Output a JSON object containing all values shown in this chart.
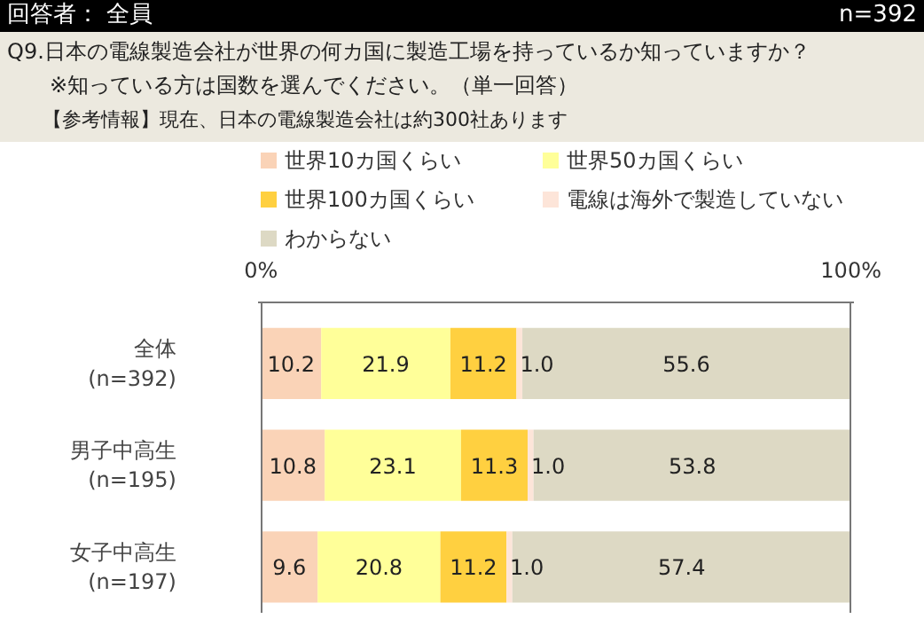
{
  "chart_data": {
    "type": "bar",
    "orientation": "horizontal",
    "stacked": true,
    "title": "回答者： 全員",
    "subtitle": "Q9.日本の電線製造会社が世界の何カ国に製造工場を持っているか知っていますか？",
    "annotations": [
      "n=392",
      "※知っている方は国数を選んでください。（単一回答）",
      "【参考情報】現在、日本の電線製造会社は約300社あります"
    ],
    "categories": [
      "全体\n(n=392)",
      "男子中高生\n(n=195)",
      "女子中高生\n(n=197)"
    ],
    "series": [
      {
        "name": "世界10カ国くらい",
        "color": "#fad3b7",
        "values": [
          10.2,
          10.8,
          9.6
        ],
        "value_labels": [
          "10.2",
          "10.8",
          "9.6"
        ]
      },
      {
        "name": "世界50カ国くらい",
        "color": "#ffff99",
        "values": [
          21.9,
          23.1,
          20.8
        ],
        "value_labels": [
          "21.9",
          "23.1",
          "20.8"
        ]
      },
      {
        "name": "世界100カ国くらい",
        "color": "#ffd040",
        "values": [
          11.2,
          11.3,
          11.2
        ],
        "value_labels": [
          "11.2",
          "11.3",
          "11.2"
        ]
      },
      {
        "name": "電線は海外で製造していない",
        "color": "#fde5d9",
        "values": [
          1.0,
          1.0,
          1.0
        ],
        "value_labels": [
          "1.0",
          "1.0",
          "1.0"
        ]
      },
      {
        "name": "わからない",
        "color": "#ddd9c4",
        "values": [
          55.6,
          53.8,
          57.4
        ],
        "value_labels": [
          "55.6",
          "53.8",
          "57.4"
        ]
      }
    ],
    "xlim": [
      0,
      100
    ],
    "xticks": [
      {
        "value": 0,
        "label": "0%"
      },
      {
        "value": 100,
        "label": "100%"
      }
    ],
    "grid": "x",
    "legend": "top",
    "data_labels": true
  }
}
